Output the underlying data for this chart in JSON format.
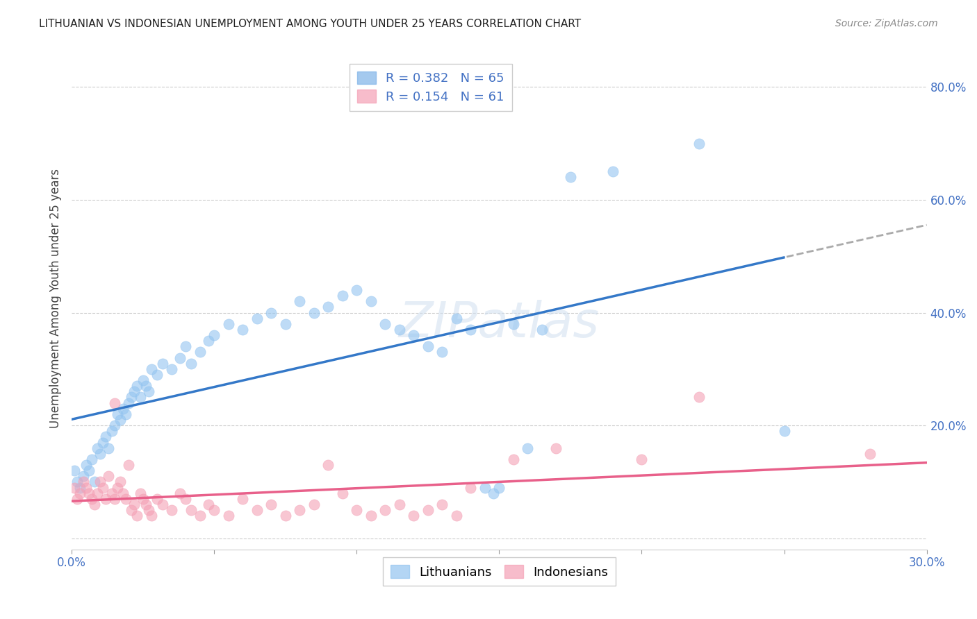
{
  "title": "LITHUANIAN VS INDONESIAN UNEMPLOYMENT AMONG YOUTH UNDER 25 YEARS CORRELATION CHART",
  "source": "Source: ZipAtlas.com",
  "xlabel": "",
  "ylabel": "Unemployment Among Youth under 25 years",
  "xlim": [
    0.0,
    0.3
  ],
  "ylim": [
    -0.02,
    0.87
  ],
  "xticks": [
    0.0,
    0.05,
    0.1,
    0.15,
    0.2,
    0.25,
    0.3
  ],
  "xticklabels": [
    "0.0%",
    "",
    "",
    "",
    "",
    "",
    "30.0%"
  ],
  "yticks_right": [
    0.0,
    0.2,
    0.4,
    0.6,
    0.8
  ],
  "yticklabels_right": [
    "",
    "20.0%",
    "40.0%",
    "60.0%",
    "80.0%"
  ],
  "legend_entries": [
    {
      "label": "Lithuanians",
      "R": "0.382",
      "N": "65",
      "color": "#7EB3E8"
    },
    {
      "label": "Indonesians",
      "R": "0.154",
      "N": "61",
      "color": "#F4A0B5"
    }
  ],
  "watermark": "ZIPatlas",
  "background_color": "#ffffff",
  "grid_color": "#cccccc",
  "lit_scatter_color": "#93C4F0",
  "ind_scatter_color": "#F4A0B5",
  "lit_line_color": "#3478C8",
  "ind_line_color": "#E8608A",
  "lit_line_extend_color": "#aaaaaa",
  "lit_points": [
    [
      0.001,
      0.12
    ],
    [
      0.002,
      0.1
    ],
    [
      0.003,
      0.09
    ],
    [
      0.004,
      0.11
    ],
    [
      0.005,
      0.13
    ],
    [
      0.006,
      0.12
    ],
    [
      0.007,
      0.14
    ],
    [
      0.008,
      0.1
    ],
    [
      0.009,
      0.16
    ],
    [
      0.01,
      0.15
    ],
    [
      0.011,
      0.17
    ],
    [
      0.012,
      0.18
    ],
    [
      0.013,
      0.16
    ],
    [
      0.014,
      0.19
    ],
    [
      0.015,
      0.2
    ],
    [
      0.016,
      0.22
    ],
    [
      0.017,
      0.21
    ],
    [
      0.018,
      0.23
    ],
    [
      0.019,
      0.22
    ],
    [
      0.02,
      0.24
    ],
    [
      0.021,
      0.25
    ],
    [
      0.022,
      0.26
    ],
    [
      0.023,
      0.27
    ],
    [
      0.024,
      0.25
    ],
    [
      0.025,
      0.28
    ],
    [
      0.026,
      0.27
    ],
    [
      0.027,
      0.26
    ],
    [
      0.028,
      0.3
    ],
    [
      0.03,
      0.29
    ],
    [
      0.032,
      0.31
    ],
    [
      0.035,
      0.3
    ],
    [
      0.038,
      0.32
    ],
    [
      0.04,
      0.34
    ],
    [
      0.042,
      0.31
    ],
    [
      0.045,
      0.33
    ],
    [
      0.048,
      0.35
    ],
    [
      0.05,
      0.36
    ],
    [
      0.055,
      0.38
    ],
    [
      0.06,
      0.37
    ],
    [
      0.065,
      0.39
    ],
    [
      0.07,
      0.4
    ],
    [
      0.075,
      0.38
    ],
    [
      0.08,
      0.42
    ],
    [
      0.085,
      0.4
    ],
    [
      0.09,
      0.41
    ],
    [
      0.095,
      0.43
    ],
    [
      0.1,
      0.44
    ],
    [
      0.105,
      0.42
    ],
    [
      0.11,
      0.38
    ],
    [
      0.115,
      0.37
    ],
    [
      0.12,
      0.36
    ],
    [
      0.125,
      0.34
    ],
    [
      0.13,
      0.33
    ],
    [
      0.135,
      0.39
    ],
    [
      0.14,
      0.37
    ],
    [
      0.145,
      0.09
    ],
    [
      0.148,
      0.08
    ],
    [
      0.15,
      0.09
    ],
    [
      0.155,
      0.38
    ],
    [
      0.16,
      0.16
    ],
    [
      0.165,
      0.37
    ],
    [
      0.175,
      0.64
    ],
    [
      0.19,
      0.65
    ],
    [
      0.22,
      0.7
    ],
    [
      0.25,
      0.19
    ]
  ],
  "ind_points": [
    [
      0.001,
      0.09
    ],
    [
      0.002,
      0.07
    ],
    [
      0.003,
      0.08
    ],
    [
      0.004,
      0.1
    ],
    [
      0.005,
      0.09
    ],
    [
      0.006,
      0.08
    ],
    [
      0.007,
      0.07
    ],
    [
      0.008,
      0.06
    ],
    [
      0.009,
      0.08
    ],
    [
      0.01,
      0.1
    ],
    [
      0.011,
      0.09
    ],
    [
      0.012,
      0.07
    ],
    [
      0.013,
      0.11
    ],
    [
      0.014,
      0.08
    ],
    [
      0.015,
      0.07
    ],
    [
      0.016,
      0.09
    ],
    [
      0.017,
      0.1
    ],
    [
      0.018,
      0.08
    ],
    [
      0.019,
      0.07
    ],
    [
      0.02,
      0.13
    ],
    [
      0.021,
      0.05
    ],
    [
      0.022,
      0.06
    ],
    [
      0.023,
      0.04
    ],
    [
      0.024,
      0.08
    ],
    [
      0.025,
      0.07
    ],
    [
      0.026,
      0.06
    ],
    [
      0.027,
      0.05
    ],
    [
      0.028,
      0.04
    ],
    [
      0.03,
      0.07
    ],
    [
      0.032,
      0.06
    ],
    [
      0.035,
      0.05
    ],
    [
      0.038,
      0.08
    ],
    [
      0.04,
      0.07
    ],
    [
      0.042,
      0.05
    ],
    [
      0.045,
      0.04
    ],
    [
      0.048,
      0.06
    ],
    [
      0.05,
      0.05
    ],
    [
      0.055,
      0.04
    ],
    [
      0.06,
      0.07
    ],
    [
      0.065,
      0.05
    ],
    [
      0.07,
      0.06
    ],
    [
      0.075,
      0.04
    ],
    [
      0.08,
      0.05
    ],
    [
      0.085,
      0.06
    ],
    [
      0.09,
      0.13
    ],
    [
      0.095,
      0.08
    ],
    [
      0.1,
      0.05
    ],
    [
      0.105,
      0.04
    ],
    [
      0.11,
      0.05
    ],
    [
      0.115,
      0.06
    ],
    [
      0.12,
      0.04
    ],
    [
      0.125,
      0.05
    ],
    [
      0.13,
      0.06
    ],
    [
      0.135,
      0.04
    ],
    [
      0.14,
      0.09
    ],
    [
      0.155,
      0.14
    ],
    [
      0.17,
      0.16
    ],
    [
      0.2,
      0.14
    ],
    [
      0.22,
      0.25
    ],
    [
      0.28,
      0.15
    ],
    [
      0.015,
      0.24
    ]
  ]
}
